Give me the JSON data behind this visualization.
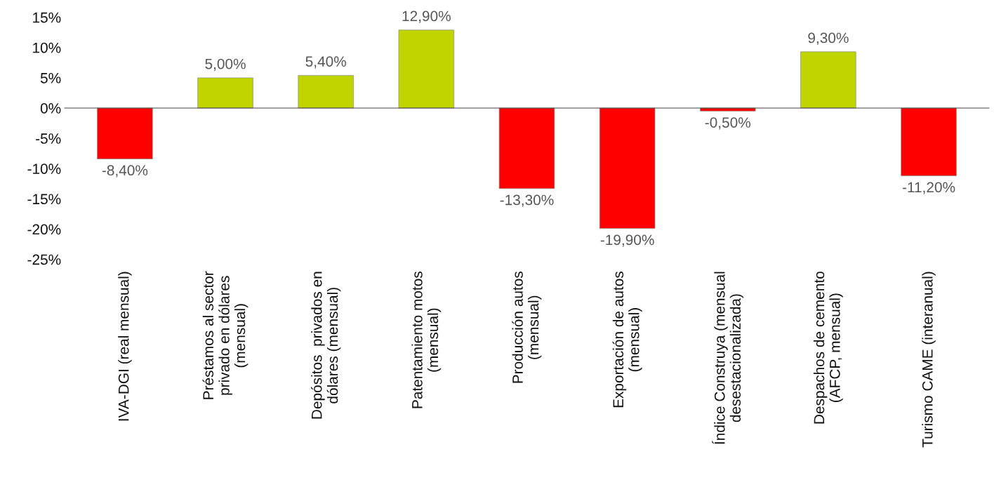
{
  "chart_data": {
    "type": "bar",
    "categories": [
      "IVA-DGI (real mensual)",
      "Préstamos al sector\nprivado en dólares\n(mensual)",
      "Depósitos  privados en\ndólares (mensual)",
      "Patentamiento motos\n(mensual)",
      "Producción autos\n(mensual)",
      "Exportación de autos\n(mensual)",
      "Índice Construya (mensual\ndesestacionalizada)",
      "Despachos de cemento\n(AFCP, mensual)",
      "Turismo CAME (interanual)"
    ],
    "values": [
      -8.4,
      5.0,
      5.4,
      12.9,
      -13.3,
      -19.9,
      -0.5,
      9.3,
      -11.2
    ],
    "value_labels": [
      "-8,40%",
      "5,00%",
      "5,40%",
      "12,90%",
      "-13,30%",
      "-19,90%",
      "-0,50%",
      "9,30%",
      "-11,20%"
    ],
    "colors": [
      "#ff0000",
      "#c0d400",
      "#c0d400",
      "#c0d400",
      "#ff0000",
      "#ff0000",
      "#ff0000",
      "#c0d400",
      "#ff0000"
    ],
    "ylim": [
      -25,
      15
    ],
    "yticks": [
      {
        "value": -25,
        "label": "-25%"
      },
      {
        "value": -20,
        "label": "-20%"
      },
      {
        "value": -15,
        "label": "-15%"
      },
      {
        "value": -10,
        "label": "-10%"
      },
      {
        "value": -5,
        "label": "-5%"
      },
      {
        "value": 0,
        "label": "0%"
      },
      {
        "value": 5,
        "label": "5%"
      },
      {
        "value": 10,
        "label": "10%"
      },
      {
        "value": 15,
        "label": "15%"
      }
    ],
    "legend": false
  }
}
